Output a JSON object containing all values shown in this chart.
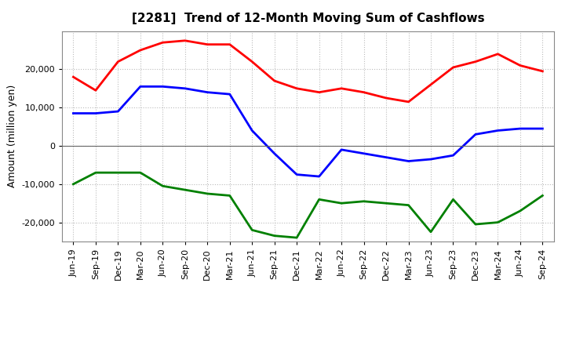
{
  "title": "[2281]  Trend of 12-Month Moving Sum of Cashflows",
  "ylabel": "Amount (million yen)",
  "x_labels": [
    "Jun-19",
    "Sep-19",
    "Dec-19",
    "Mar-20",
    "Jun-20",
    "Sep-20",
    "Dec-20",
    "Mar-21",
    "Jun-21",
    "Sep-21",
    "Dec-21",
    "Mar-22",
    "Jun-22",
    "Sep-22",
    "Dec-22",
    "Mar-23",
    "Jun-23",
    "Sep-23",
    "Dec-23",
    "Mar-24",
    "Jun-24",
    "Sep-24"
  ],
  "operating": [
    18000,
    14500,
    22000,
    25000,
    27000,
    27500,
    26500,
    26500,
    22000,
    17000,
    15000,
    14000,
    15000,
    14000,
    12500,
    11500,
    16000,
    20500,
    22000,
    24000,
    21000,
    19500
  ],
  "investing": [
    -10000,
    -7000,
    -7000,
    -7000,
    -10500,
    -11500,
    -12500,
    -13000,
    -22000,
    -23500,
    -24000,
    -14000,
    -15000,
    -14500,
    -15000,
    -15500,
    -22500,
    -14000,
    -20500,
    -20000,
    -17000,
    -13000
  ],
  "free": [
    8500,
    8500,
    9000,
    15500,
    15500,
    15000,
    14000,
    13500,
    4000,
    -2000,
    -7500,
    -8000,
    -1000,
    -2000,
    -3000,
    -4000,
    -3500,
    -2500,
    3000,
    4000,
    4500,
    4500
  ],
  "operating_color": "#ff0000",
  "investing_color": "#008000",
  "free_color": "#0000ff",
  "ylim": [
    -25000,
    30000
  ],
  "yticks": [
    -20000,
    -10000,
    0,
    10000,
    20000
  ],
  "background_color": "#ffffff",
  "plot_bg_color": "#ffffff",
  "grid_color": "#bbbbbb",
  "linewidth": 2.0,
  "title_fontsize": 11,
  "ylabel_fontsize": 9,
  "tick_fontsize": 8,
  "legend_fontsize": 9
}
